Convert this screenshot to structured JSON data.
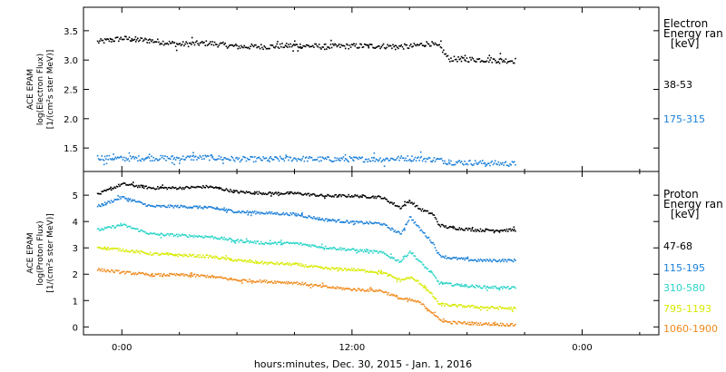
{
  "chart_data": [
    {
      "type": "scatter",
      "panel": "electron",
      "ylabel_lines": [
        "ACE EPAM",
        "log(Electron Flux)",
        "[1/(cm²s ster MeV)]"
      ],
      "ylim": [
        1.1,
        3.9
      ],
      "yticks": [
        "1.5",
        "2.0",
        "2.5",
        "3.0",
        "3.5"
      ],
      "legend_title_lines": [
        "Electron",
        "Energy ran",
        "[keV]"
      ],
      "series": [
        {
          "name": "38-53",
          "color": "#000000",
          "x": [
            -1.3,
            0,
            1.5,
            3,
            4.5,
            6,
            7.5,
            9,
            10.5,
            12,
            13.5,
            15,
            16.0,
            16.6,
            17,
            18.5,
            20.5
          ],
          "y": [
            3.32,
            3.38,
            3.34,
            3.28,
            3.3,
            3.24,
            3.24,
            3.26,
            3.24,
            3.25,
            3.25,
            3.24,
            3.3,
            3.22,
            3.03,
            3.02,
            3.0
          ]
        },
        {
          "name": "175-315",
          "color": "#1a7fd8",
          "x": [
            -1.3,
            0,
            1.5,
            3,
            4.5,
            6,
            7.5,
            9,
            10.5,
            12,
            13.5,
            15,
            16.5,
            17,
            18.5,
            20.5
          ],
          "y": [
            1.35,
            1.33,
            1.34,
            1.34,
            1.35,
            1.32,
            1.32,
            1.33,
            1.32,
            1.32,
            1.32,
            1.34,
            1.31,
            1.27,
            1.26,
            1.24
          ]
        }
      ]
    },
    {
      "type": "scatter",
      "panel": "proton",
      "ylabel_lines": [
        "ACE EPAM",
        "log(Proton Flux)",
        "[1/(cm²s ster MeV)]"
      ],
      "ylim": [
        -0.3,
        5.9
      ],
      "yticks": [
        "0",
        "1",
        "2",
        "3",
        "4",
        "5"
      ],
      "legend_title_lines": [
        "Proton",
        "Energy ran",
        "[keV]"
      ],
      "series": [
        {
          "name": "47-68",
          "color": "#000000",
          "x": [
            -1.3,
            0,
            1.5,
            3,
            4.5,
            6,
            7.5,
            9,
            10.5,
            12,
            13.5,
            14.5,
            15.0,
            15.5,
            16.2,
            16.5,
            17,
            18.5,
            20.5
          ],
          "y": [
            5.05,
            5.45,
            5.3,
            5.3,
            5.35,
            5.15,
            5.1,
            5.1,
            5.0,
            5.0,
            4.95,
            4.55,
            4.8,
            4.5,
            4.3,
            3.9,
            3.8,
            3.7,
            3.7
          ]
        },
        {
          "name": "115-195",
          "color": "#1a7fd8",
          "x": [
            -1.3,
            0,
            1.5,
            3,
            4.5,
            6,
            7.5,
            9,
            10.5,
            12,
            13.5,
            14.5,
            15.0,
            15.5,
            16.2,
            16.5,
            17,
            18.5,
            20.5
          ],
          "y": [
            4.6,
            4.95,
            4.6,
            4.6,
            4.55,
            4.4,
            4.35,
            4.3,
            4.1,
            4.0,
            3.95,
            3.55,
            4.2,
            3.75,
            3.2,
            2.75,
            2.65,
            2.55,
            2.55
          ]
        },
        {
          "name": "310-580",
          "color": "#2ad4c8",
          "x": [
            -1.3,
            0,
            1.5,
            3,
            4.5,
            6,
            7.5,
            9,
            10.5,
            12,
            13.5,
            14.5,
            15.0,
            15.5,
            16.2,
            16.5,
            17,
            18.5,
            20.5
          ],
          "y": [
            3.7,
            3.9,
            3.55,
            3.5,
            3.45,
            3.3,
            3.2,
            3.2,
            3.05,
            2.95,
            2.85,
            2.5,
            2.9,
            2.5,
            2.0,
            1.7,
            1.65,
            1.55,
            1.5
          ]
        },
        {
          "name": "795-1193",
          "color": "#d7ea00",
          "x": [
            -1.3,
            0,
            1.5,
            3,
            4.5,
            6,
            7.5,
            9,
            10.5,
            12,
            13.5,
            14.5,
            15.0,
            15.5,
            16.2,
            16.5,
            17,
            18.5,
            20.5
          ],
          "y": [
            3.05,
            2.95,
            2.8,
            2.75,
            2.7,
            2.55,
            2.45,
            2.4,
            2.25,
            2.2,
            2.1,
            1.8,
            1.9,
            1.7,
            1.2,
            0.9,
            0.85,
            0.78,
            0.72
          ]
        },
        {
          "name": "1060-1900",
          "color": "#f08a1c",
          "x": [
            -1.3,
            0,
            1.5,
            3,
            4.5,
            6,
            7.5,
            9,
            10.5,
            12,
            13.5,
            14.5,
            15.0,
            15.5,
            16.2,
            16.5,
            17,
            18.5,
            20.5
          ],
          "y": [
            2.2,
            2.1,
            2.0,
            2.0,
            1.95,
            1.8,
            1.75,
            1.7,
            1.55,
            1.45,
            1.4,
            1.1,
            1.05,
            0.95,
            0.55,
            0.3,
            0.2,
            0.15,
            0.1
          ]
        }
      ]
    }
  ],
  "x_axis": {
    "unit": "hours",
    "xlim": [
      -2,
      28
    ],
    "ticks": [
      {
        "x": 0,
        "label": "0:00"
      },
      {
        "x": 12,
        "label": "12:00"
      },
      {
        "x": 24,
        "label": "0:00"
      }
    ],
    "xlabel": "hours:minutes, Dec. 30, 2015 - Jan.  1, 2016"
  }
}
